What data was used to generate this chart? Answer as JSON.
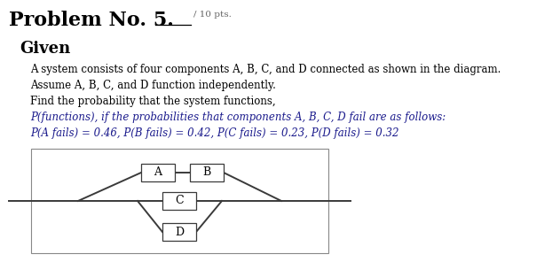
{
  "title": "Problem No. 5.",
  "title_pts": "/ 10 pts.",
  "given_label": "Given",
  "line1": "A system consists of four components A, B, C, and D connected as shown in the diagram.",
  "line2": "Assume A, B, C, and D function independently.",
  "line3": "Find the probability that the system functions,",
  "text_color": "#000000",
  "italic_color": "#1a1a8c",
  "line_color": "#3a3a3a",
  "background": "#ffffff",
  "border_color": "#888888"
}
